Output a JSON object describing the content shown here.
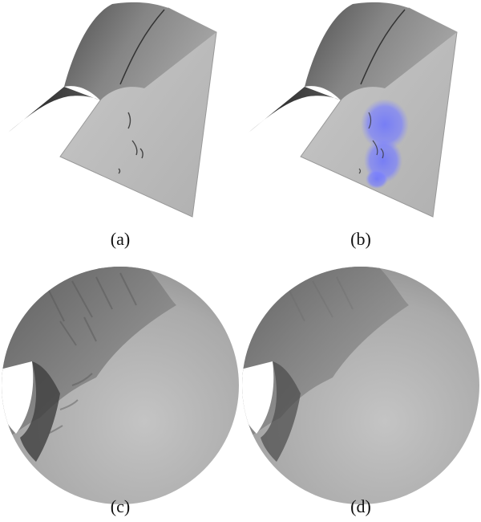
{
  "figure": {
    "panels": [
      {
        "id": "a",
        "caption": "(a)",
        "view": "terrain-surface-render"
      },
      {
        "id": "b",
        "caption": "(b)",
        "view": "terrain-surface-render-with-highlight",
        "highlight_color": "#6b73ff"
      },
      {
        "id": "c",
        "caption": "(c)",
        "view": "close-up-disk-detailed"
      },
      {
        "id": "d",
        "caption": "(d)",
        "view": "close-up-disk-smoothed"
      }
    ]
  }
}
